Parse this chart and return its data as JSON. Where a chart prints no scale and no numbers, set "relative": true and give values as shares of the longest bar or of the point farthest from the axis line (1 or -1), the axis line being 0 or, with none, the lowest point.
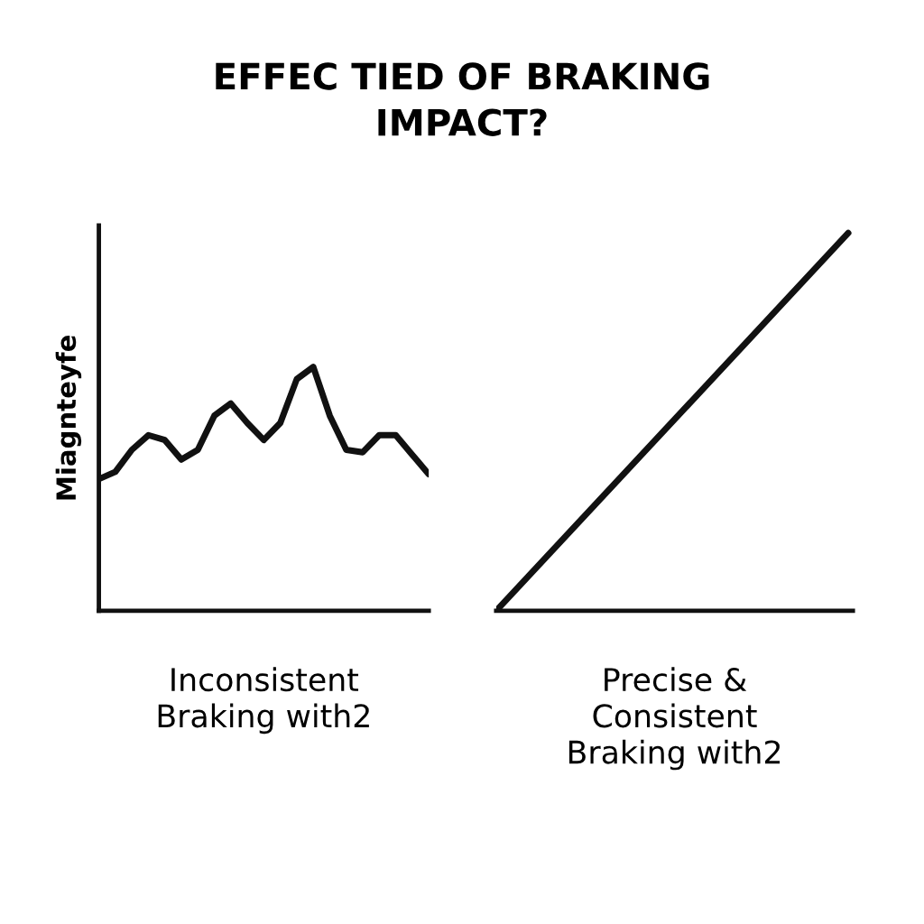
{
  "chart_data": [
    {
      "type": "line",
      "title": "EFFEC TIED OF BRAKING\nIMPACT?",
      "ylabel": "Miagnteyfe",
      "xlabel": "Inconsistent\nBraking with2",
      "relative": true,
      "categories": [
        null,
        null,
        null,
        null,
        null,
        null,
        null,
        null,
        null,
        null,
        null,
        null,
        null,
        null,
        null,
        null,
        null,
        null,
        null,
        null,
        null
      ],
      "series": [
        {
          "color": "#111111",
          "values": [
            0.54,
            0.57,
            0.66,
            0.72,
            0.7,
            0.62,
            0.66,
            0.8,
            0.85,
            0.77,
            0.7,
            0.77,
            0.95,
            1.0,
            0.8,
            0.66,
            0.65,
            0.72,
            0.72,
            0.64,
            0.56
          ]
        }
      ]
    },
    {
      "type": "line",
      "xlabel": "Precise &\nConsistent\nBraking with2",
      "relative": true,
      "categories": [
        null,
        null
      ],
      "series": [
        {
          "color": "#111111",
          "values": [
            0,
            1
          ]
        }
      ]
    }
  ]
}
